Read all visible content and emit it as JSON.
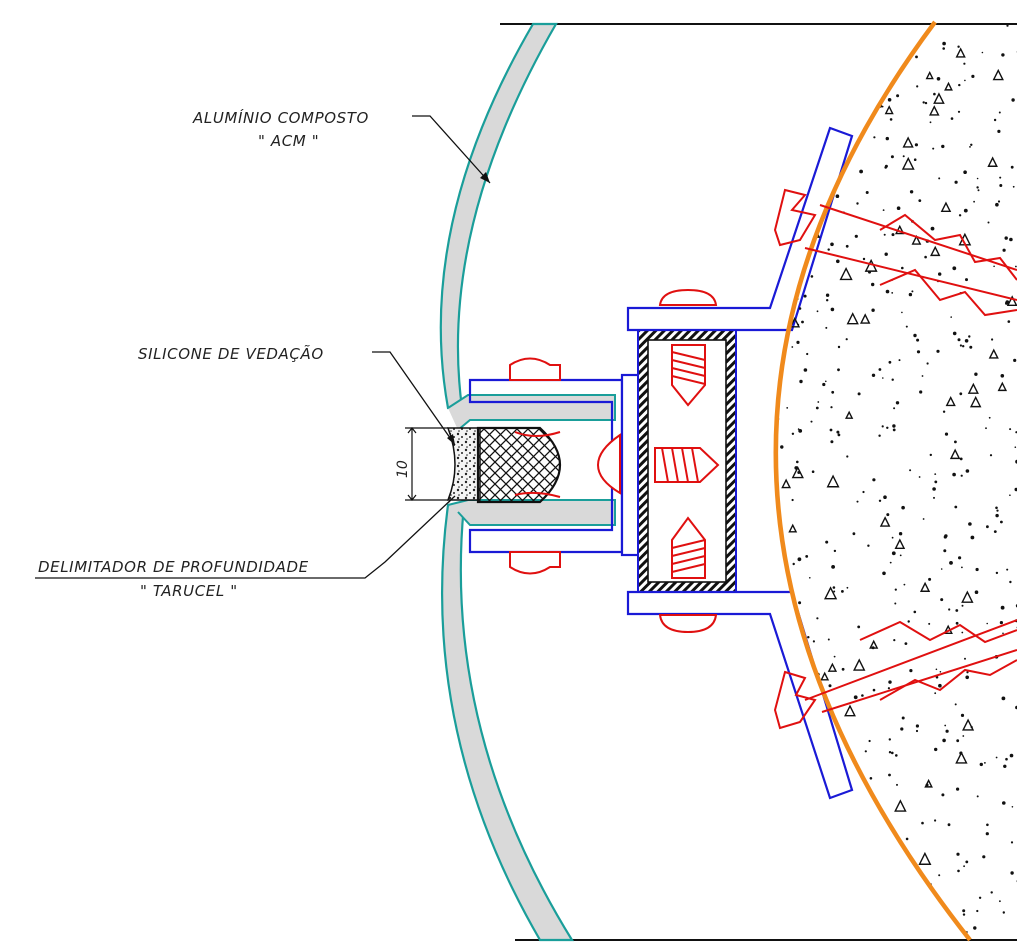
{
  "labels": {
    "acm_title": "ALUMÍNIO COMPOSTO",
    "acm_sub": "\" ACM \"",
    "silicone": "SILICONE DE VEDAÇÃO",
    "delimiter_title": "DELIMITADOR DE PROFUNDIDADE",
    "delimiter_sub": "\" TARUCEL \"",
    "dimension": "10"
  },
  "colors": {
    "panel_outline": "#1a9e9a",
    "panel_fill": "#d9d9d9",
    "bracket": "#1a1ad6",
    "fastener": "#e01010",
    "column": "#f08a1c",
    "ink": "#111111"
  }
}
